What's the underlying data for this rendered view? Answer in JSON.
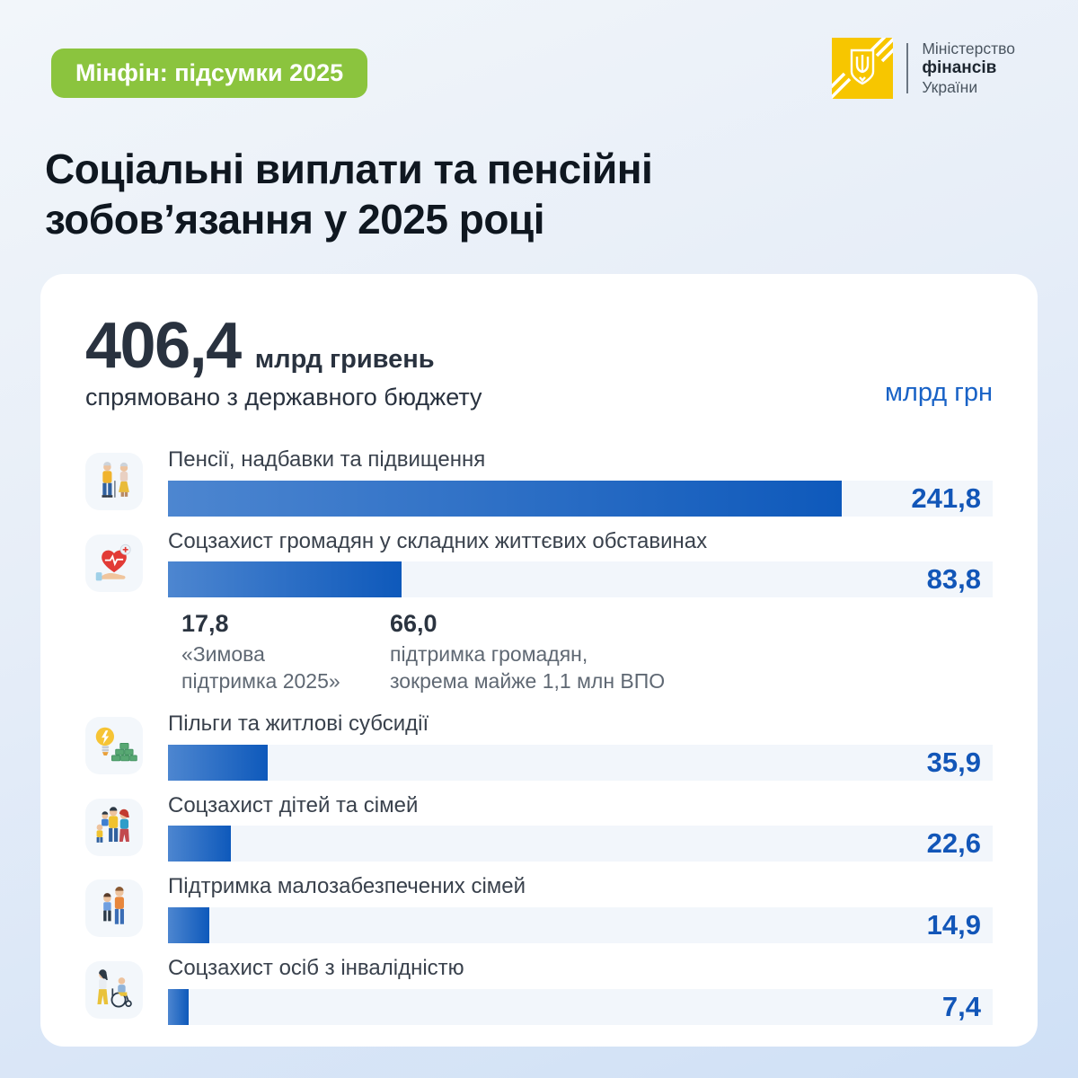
{
  "badge": {
    "label": "Мінфін: підсумки 2025"
  },
  "logo": {
    "line1": "Міністерство",
    "line2": "фінансів",
    "line3": "України"
  },
  "title": {
    "line1": "Соціальні виплати та пенсійні",
    "line2": "зобов’язання у 2025 році"
  },
  "headline": {
    "amount": "406,4",
    "unit": "млрд гривень",
    "caption": "спрямовано з державного бюджету",
    "axis_label": "млрд грн"
  },
  "colors": {
    "badge_green": "#8bc43e",
    "logo_yellow": "#f7c600",
    "accent_blue": "#1256b8",
    "bar_gradient_start": "#4d86d0",
    "bar_gradient_end": "#0e59bb",
    "bar_track": "#f2f6fb",
    "dark_navy": "#29323f"
  },
  "chart_data": {
    "type": "bar",
    "orientation": "horizontal",
    "title": "Соціальні виплати та пенсійні зобов’язання у 2025 році",
    "unit": "млрд грн",
    "total": 406.4,
    "bar_scale_max": 296,
    "categories": [
      "Пенсії, надбавки та підвищення",
      "Соцзахист громадян у складних життєвих обставинах",
      "Пільги та житлові субсидії",
      "Соцзахист дітей та сімей",
      "Підтримка малозабезпечених сімей",
      "Соцзахист осіб з інвалідністю"
    ],
    "values": [
      241.8,
      83.8,
      35.9,
      22.6,
      14.9,
      7.4
    ],
    "items": [
      {
        "label": "Пенсії, надбавки та підвищення",
        "value": 241.8,
        "value_display": "241,8",
        "icon": "pensioners-icon"
      },
      {
        "label": "Соцзахист громадян у складних життєвих обставинах",
        "value": 83.8,
        "value_display": "83,8",
        "icon": "health-support-icon",
        "breakdown": [
          {
            "value_display": "17,8",
            "label": "«Зимова підтримка 2025»"
          },
          {
            "value_display": "66,0",
            "label": "підтримка громадян, зокрема майже 1,1 млн ВПО"
          }
        ]
      },
      {
        "label": "Пільги та житлові субсидії",
        "value": 35.9,
        "value_display": "35,9",
        "icon": "benefits-subsidies-icon"
      },
      {
        "label": "Соцзахист дітей та сімей",
        "value": 22.6,
        "value_display": "22,6",
        "icon": "family-icon"
      },
      {
        "label": "Підтримка малозабезпечених сімей",
        "value": 14.9,
        "value_display": "14,9",
        "icon": "low-income-family-icon"
      },
      {
        "label": "Соцзахист осіб з інвалідністю",
        "value": 7.4,
        "value_display": "7,4",
        "icon": "disability-icon"
      }
    ]
  }
}
